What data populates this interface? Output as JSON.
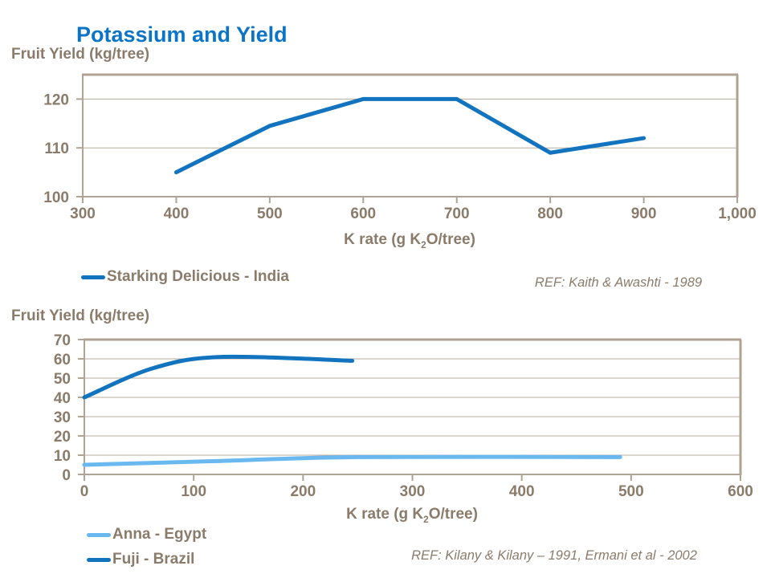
{
  "page_title": "Potassium and Yield",
  "colors": {
    "title_blue": "#0c74c6",
    "text_taupe": "#8b7b6a",
    "axis_taupe": "#b0a394",
    "grid_taupe": "#b7ab9d",
    "series_dark_blue": "#1273be",
    "series_light_blue": "#6ab8f0"
  },
  "chart_data": [
    {
      "type": "line",
      "ylabel": "Fruit Yield (kg/tree)",
      "xlabel": "K rate (g K2O/tree)",
      "xlabel_parts": {
        "pre": "K rate (g K",
        "sub": "2",
        "post": "O/tree)"
      },
      "ref": "REF: Kaith & Awashti - 1989",
      "xlim": [
        300,
        1000
      ],
      "ylim": [
        100,
        125
      ],
      "xtick_values": [
        300,
        400,
        500,
        600,
        700,
        800,
        900,
        1000
      ],
      "xtick_labels": [
        "300",
        "400",
        "500",
        "600",
        "700",
        "800",
        "900",
        "1,000"
      ],
      "ytick_values": [
        100,
        110,
        120
      ],
      "ytick_labels": [
        "100",
        "110",
        "120"
      ],
      "grid": true,
      "legend_position": "bottom-left",
      "series": [
        {
          "name": "Starking Delicious - India",
          "color_key": "series_dark_blue",
          "smooth": false,
          "points": [
            [
              400,
              105
            ],
            [
              500,
              114.5
            ],
            [
              600,
              120
            ],
            [
              700,
              120
            ],
            [
              800,
              109
            ],
            [
              900,
              112
            ]
          ]
        }
      ]
    },
    {
      "type": "line",
      "ylabel": "Fruit Yield (kg/tree)",
      "xlabel": "K rate (g K2O/tree)",
      "xlabel_parts": {
        "pre": "K rate (g K",
        "sub": "2",
        "post": "O/tree)"
      },
      "ref": "REF: Kilany & Kilany – 1991, Ermani et al - 2002",
      "xlim": [
        0,
        600
      ],
      "ylim": [
        0,
        70
      ],
      "xtick_values": [
        0,
        100,
        200,
        300,
        400,
        500,
        600
      ],
      "xtick_labels": [
        "0",
        "100",
        "200",
        "300",
        "400",
        "500",
        "600"
      ],
      "ytick_values": [
        0,
        10,
        20,
        30,
        40,
        50,
        60,
        70
      ],
      "ytick_labels": [
        "0",
        "10",
        "20",
        "30",
        "40",
        "50",
        "60",
        "70"
      ],
      "grid": true,
      "legend_position": "bottom-left",
      "series": [
        {
          "name": "Anna - Egypt",
          "color_key": "series_light_blue",
          "smooth": true,
          "points": [
            [
              0,
              5
            ],
            [
              125,
              7
            ],
            [
              250,
              9
            ],
            [
              490,
              9
            ]
          ]
        },
        {
          "name": "Fuji - Brazil",
          "color_key": "series_dark_blue",
          "smooth": true,
          "points": [
            [
              0,
              40
            ],
            [
              62,
              55
            ],
            [
              125,
              61
            ],
            [
              245,
              59
            ]
          ]
        }
      ]
    }
  ]
}
